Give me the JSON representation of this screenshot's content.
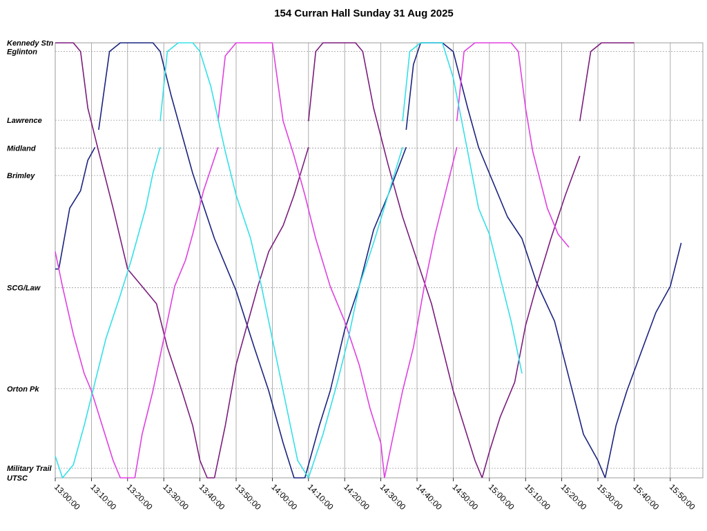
{
  "chart_data": {
    "type": "line",
    "title": "154 Curran Hall Sunday 31 Aug 2025",
    "x_range": [
      "13:00:00",
      "15:59:00"
    ],
    "x_ticks": [
      "13:00:00",
      "13:10:00",
      "13:20:00",
      "13:30:00",
      "13:40:00",
      "13:50:00",
      "14:00:00",
      "14:10:00",
      "14:20:00",
      "14:30:00",
      "14:40:00",
      "14:50:00",
      "15:00:00",
      "15:10:00",
      "15:20:00",
      "15:30:00",
      "15:40:00",
      "15:50:00"
    ],
    "stops": [
      {
        "name": "Kennedy Stn",
        "pos": 1.0
      },
      {
        "name": "Eglinton",
        "pos": 0.98
      },
      {
        "name": "Lawrence",
        "pos": 0.822
      },
      {
        "name": "Midland",
        "pos": 0.758
      },
      {
        "name": "Brimley",
        "pos": 0.695
      },
      {
        "name": "SCG/Law",
        "pos": 0.437
      },
      {
        "name": "Orton Pk",
        "pos": 0.205
      },
      {
        "name": "Military Trail",
        "pos": 0.022
      },
      {
        "name": "UTSC",
        "pos": 0.0
      }
    ],
    "grid": true,
    "legend": "none",
    "series": [
      {
        "color": "#1a237e",
        "trips": [
          [
            [
              "13:00:00",
              0.48
            ],
            [
              "13:01:00",
              0.48
            ],
            [
              "13:04:00",
              0.62
            ],
            [
              "13:07:00",
              0.66
            ],
            [
              "13:09:00",
              0.73
            ],
            [
              "13:11:00",
              0.76
            ]
          ],
          [
            [
              "13:12:00",
              0.8
            ],
            [
              "13:15:00",
              0.98
            ],
            [
              "13:18:00",
              1.0
            ],
            [
              "13:27:00",
              1.0
            ],
            [
              "13:29:00",
              0.98
            ],
            [
              "13:32:00",
              0.88
            ],
            [
              "13:38:00",
              0.7
            ],
            [
              "13:44:00",
              0.55
            ],
            [
              "13:50:00",
              0.43
            ],
            [
              "13:55:00",
              0.3
            ],
            [
              "13:59:00",
              0.2
            ],
            [
              "14:03:00",
              0.08
            ],
            [
              "14:06:00",
              0.0
            ],
            [
              "14:09:00",
              0.0
            ]
          ],
          [
            [
              "14:09:00",
              0.0
            ],
            [
              "14:13:00",
              0.12
            ],
            [
              "14:16:00",
              0.2
            ],
            [
              "14:20:00",
              0.34
            ],
            [
              "14:24:00",
              0.44
            ],
            [
              "14:28:00",
              0.57
            ],
            [
              "14:32:00",
              0.65
            ],
            [
              "14:37:00",
              0.76
            ]
          ],
          [
            [
              "14:37:00",
              0.8
            ],
            [
              "14:39:00",
              0.95
            ],
            [
              "14:41:00",
              1.0
            ],
            [
              "14:47:00",
              1.0
            ],
            [
              "14:50:00",
              0.98
            ],
            [
              "14:54:00",
              0.85
            ],
            [
              "14:57:00",
              0.76
            ],
            [
              "15:00:00",
              0.7
            ],
            [
              "15:05:00",
              0.6
            ],
            [
              "15:09:00",
              0.55
            ],
            [
              "15:13:00",
              0.45
            ],
            [
              "15:18:00",
              0.36
            ],
            [
              "15:22:00",
              0.23
            ],
            [
              "15:26:00",
              0.1
            ],
            [
              "15:30:00",
              0.04
            ],
            [
              "15:32:00",
              0.0
            ]
          ],
          [
            [
              "15:32:00",
              0.0
            ],
            [
              "15:35:00",
              0.12
            ],
            [
              "15:38:00",
              0.2
            ],
            [
              "15:42:00",
              0.29
            ],
            [
              "15:46:00",
              0.38
            ],
            [
              "15:50:00",
              0.44
            ],
            [
              "15:53:00",
              0.54
            ]
          ]
        ]
      },
      {
        "color": "#7b1c7b",
        "trips": [
          [
            [
              "13:00:00",
              1.0
            ],
            [
              "13:05:00",
              1.0
            ],
            [
              "13:07:00",
              0.98
            ],
            [
              "13:09:00",
              0.85
            ],
            [
              "13:12:00",
              0.75
            ],
            [
              "13:16:00",
              0.62
            ],
            [
              "13:20:00",
              0.48
            ],
            [
              "13:24:00",
              0.44
            ],
            [
              "13:28:00",
              0.4
            ],
            [
              "13:31:00",
              0.3
            ],
            [
              "13:35:00",
              0.2
            ],
            [
              "13:38:00",
              0.12
            ],
            [
              "13:40:00",
              0.04
            ],
            [
              "13:42:00",
              0.0
            ],
            [
              "13:44:00",
              0.0
            ]
          ],
          [
            [
              "13:44:00",
              0.0
            ],
            [
              "13:47:00",
              0.12
            ],
            [
              "13:50:00",
              0.26
            ],
            [
              "13:53:00",
              0.35
            ],
            [
              "13:56:00",
              0.44
            ],
            [
              "13:59:00",
              0.52
            ],
            [
              "14:03:00",
              0.58
            ],
            [
              "14:06:00",
              0.65
            ],
            [
              "14:10:00",
              0.76
            ]
          ],
          [
            [
              "14:10:00",
              0.82
            ],
            [
              "14:12:00",
              0.98
            ],
            [
              "14:14:00",
              1.0
            ],
            [
              "14:23:00",
              1.0
            ],
            [
              "14:25:00",
              0.98
            ],
            [
              "14:28:00",
              0.85
            ],
            [
              "14:32:00",
              0.72
            ],
            [
              "14:36:00",
              0.6
            ],
            [
              "14:40:00",
              0.5
            ],
            [
              "14:44:00",
              0.4
            ],
            [
              "14:47:00",
              0.3
            ],
            [
              "14:50:00",
              0.2
            ],
            [
              "14:53:00",
              0.12
            ],
            [
              "14:56:00",
              0.04
            ],
            [
              "14:58:00",
              0.0
            ]
          ],
          [
            [
              "14:58:00",
              0.0
            ],
            [
              "15:00:00",
              0.06
            ],
            [
              "15:03:00",
              0.14
            ],
            [
              "15:07:00",
              0.22
            ],
            [
              "15:10:00",
              0.35
            ],
            [
              "15:13:00",
              0.44
            ],
            [
              "15:17:00",
              0.55
            ],
            [
              "15:21:00",
              0.65
            ],
            [
              "15:25:00",
              0.74
            ]
          ],
          [
            [
              "15:25:00",
              0.82
            ],
            [
              "15:28:00",
              0.98
            ],
            [
              "15:31:00",
              1.0
            ],
            [
              "15:35:00",
              1.0
            ],
            [
              "15:37:00",
              1.0
            ],
            [
              "15:40:00",
              1.0
            ]
          ]
        ]
      },
      {
        "color": "#e040e0",
        "trips": [
          [
            [
              "13:00:00",
              0.52
            ],
            [
              "13:02:00",
              0.44
            ],
            [
              "13:05:00",
              0.33
            ],
            [
              "13:08:00",
              0.24
            ],
            [
              "13:10:00",
              0.2
            ],
            [
              "13:13:00",
              0.12
            ],
            [
              "13:16:00",
              0.04
            ],
            [
              "13:18:00",
              0.0
            ],
            [
              "13:22:00",
              0.0
            ]
          ],
          [
            [
              "13:22:00",
              0.0
            ],
            [
              "13:24:00",
              0.1
            ],
            [
              "13:27:00",
              0.2
            ],
            [
              "13:30:00",
              0.32
            ],
            [
              "13:33:00",
              0.44
            ],
            [
              "13:36:00",
              0.5
            ],
            [
              "13:38:00",
              0.56
            ],
            [
              "13:41:00",
              0.66
            ],
            [
              "13:45:00",
              0.76
            ]
          ],
          [
            [
              "13:45:00",
              0.82
            ],
            [
              "13:47:00",
              0.97
            ],
            [
              "13:50:00",
              1.0
            ],
            [
              "13:56:00",
              1.0
            ],
            [
              "14:00:00",
              1.0
            ],
            [
              "14:03:00",
              0.82
            ],
            [
              "14:06:00",
              0.74
            ],
            [
              "14:09:00",
              0.65
            ],
            [
              "14:12:00",
              0.55
            ],
            [
              "14:16:00",
              0.44
            ],
            [
              "14:20:00",
              0.36
            ],
            [
              "14:24:00",
              0.26
            ],
            [
              "14:27:00",
              0.16
            ],
            [
              "14:30:00",
              0.08
            ],
            [
              "14:31:00",
              0.0
            ]
          ],
          [
            [
              "14:31:00",
              0.0
            ],
            [
              "14:33:00",
              0.08
            ],
            [
              "14:36:00",
              0.2
            ],
            [
              "14:39:00",
              0.3
            ],
            [
              "14:42:00",
              0.44
            ],
            [
              "14:45:00",
              0.56
            ],
            [
              "14:48:00",
              0.66
            ],
            [
              "14:51:00",
              0.76
            ]
          ],
          [
            [
              "14:51:00",
              0.82
            ],
            [
              "14:53:00",
              0.98
            ],
            [
              "14:56:00",
              1.0
            ],
            [
              "15:03:00",
              1.0
            ],
            [
              "15:06:00",
              1.0
            ],
            [
              "15:08:00",
              0.98
            ],
            [
              "15:10:00",
              0.85
            ],
            [
              "15:12:00",
              0.75
            ],
            [
              "15:16:00",
              0.62
            ],
            [
              "15:19:00",
              0.56
            ],
            [
              "15:22:00",
              0.53
            ]
          ]
        ]
      },
      {
        "color": "#33e0e8",
        "trips": [
          [
            [
              "13:00:00",
              0.05
            ],
            [
              "13:02:00",
              0.0
            ],
            [
              "13:05:00",
              0.03
            ],
            [
              "13:08:00",
              0.12
            ],
            [
              "13:11:00",
              0.22
            ],
            [
              "13:14:00",
              0.32
            ],
            [
              "13:18:00",
              0.42
            ],
            [
              "13:21:00",
              0.5
            ],
            [
              "13:25:00",
              0.62
            ],
            [
              "13:27:00",
              0.7
            ],
            [
              "13:29:00",
              0.76
            ]
          ],
          [
            [
              "13:29:00",
              0.82
            ],
            [
              "13:31:00",
              0.98
            ],
            [
              "13:34:00",
              1.0
            ],
            [
              "13:38:00",
              1.0
            ],
            [
              "13:40:00",
              0.98
            ],
            [
              "13:43:00",
              0.9
            ],
            [
              "13:47:00",
              0.75
            ],
            [
              "13:50:00",
              0.65
            ],
            [
              "13:54:00",
              0.55
            ],
            [
              "13:57:00",
              0.44
            ],
            [
              "14:00:00",
              0.32
            ],
            [
              "14:03:00",
              0.2
            ],
            [
              "14:05:00",
              0.12
            ],
            [
              "14:07:00",
              0.04
            ],
            [
              "14:10:00",
              0.0
            ]
          ],
          [
            [
              "14:10:00",
              0.0
            ],
            [
              "14:14:00",
              0.1
            ],
            [
              "14:18:00",
              0.22
            ],
            [
              "14:21:00",
              0.32
            ],
            [
              "14:24:00",
              0.44
            ],
            [
              "14:28:00",
              0.54
            ],
            [
              "14:32:00",
              0.65
            ],
            [
              "14:36:00",
              0.76
            ]
          ],
          [
            [
              "14:36:00",
              0.82
            ],
            [
              "14:38:00",
              0.98
            ],
            [
              "14:41:00",
              1.0
            ],
            [
              "14:47:00",
              1.0
            ],
            [
              "14:50:00",
              0.92
            ],
            [
              "14:54:00",
              0.75
            ],
            [
              "14:57:00",
              0.62
            ],
            [
              "15:00:00",
              0.56
            ],
            [
              "15:03:00",
              0.46
            ],
            [
              "15:06:00",
              0.36
            ],
            [
              "15:09:00",
              0.24
            ]
          ]
        ]
      }
    ]
  }
}
